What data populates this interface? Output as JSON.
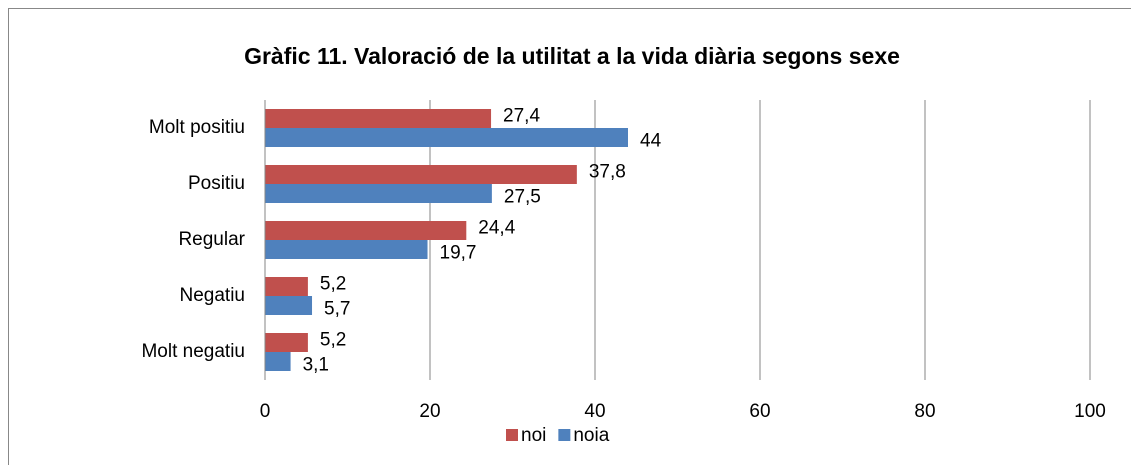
{
  "chart_data": {
    "type": "hbar",
    "title": "Gràfic 11. Valoració de la utilitat a la vida diària segons sexe",
    "categories": [
      "Molt positiu",
      "Positiu",
      "Regular",
      "Negatiu",
      "Molt negatiu"
    ],
    "series": [
      {
        "name": "noi",
        "color": "#c0504d",
        "values": [
          27.4,
          37.8,
          24.4,
          5.2,
          5.2
        ],
        "value_labels": [
          "27,4",
          "37,8",
          "24,4",
          "5,2",
          "5,2"
        ]
      },
      {
        "name": "noia",
        "color": "#4f81bd",
        "values": [
          44,
          27.5,
          19.7,
          5.7,
          3.1
        ],
        "value_labels": [
          "44",
          "27,5",
          "19,7",
          "5,7",
          "3,1"
        ]
      }
    ],
    "xlim": [
      0,
      100
    ],
    "xticks": [
      0,
      20,
      40,
      60,
      80,
      100
    ],
    "grid": true,
    "legend": "bottom"
  }
}
